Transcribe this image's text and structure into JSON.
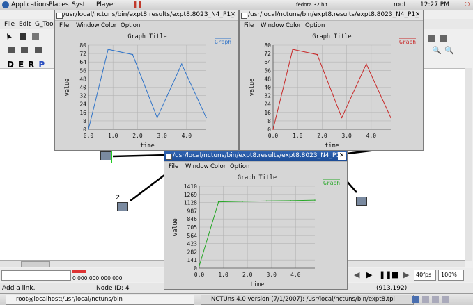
{
  "topbar": {
    "menus": [
      "Applications",
      "Places",
      "Syst"
    ],
    "player": "Player",
    "distro": "fedora 32 bit",
    "user": "root",
    "time": "12:27 PM"
  },
  "app": {
    "menus": [
      "File",
      "Edit",
      "G_Tools"
    ],
    "mode_letters": [
      "D",
      "E",
      "R",
      "P"
    ],
    "node_labels": [
      "2"
    ],
    "playback": {
      "clock": "0 000.000 000 000",
      "fps": "40fps",
      "zoom": "100%"
    },
    "status": {
      "hint": "Add a link.",
      "node_id": "Node ID: 4",
      "coords": "(913,192)"
    }
  },
  "taskbar": {
    "tasks": [
      "root@localhost:/usr/local/nctuns/bin",
      "NCTUns 4.0 version (7/1/2007): /usr/local/nctuns/bin/expt8.tpl"
    ]
  },
  "windows": [
    {
      "title": "/usr/local/nctuns/bin/expt8.results/expt8.8023_N4_P1_",
      "menus": [
        "File",
        "Window",
        "Color",
        "Option"
      ],
      "color": "#2f73c8"
    },
    {
      "title": "/usr/local/nctuns/bin/expt8.results/expt8.8023_N4_P1_",
      "menus": [
        "File",
        "Window",
        "Color",
        "Option"
      ],
      "color": "#c82828"
    },
    {
      "title": "/usr/local/nctuns/bin/expt8.results/expt8.8023_N4_P1_",
      "menus": [
        "File",
        "Window",
        "Color",
        "Option"
      ],
      "color": "#28a828"
    }
  ],
  "chart_data": [
    {
      "type": "line",
      "title": "Graph Title",
      "xlabel": "time",
      "ylabel": "value",
      "legend": "Graph",
      "legend_position": "top-right",
      "x_ticks": [
        "0.0",
        "1.0",
        "2.0",
        "3.0",
        "4.0"
      ],
      "y_ticks": [
        "0",
        "8",
        "16",
        "24",
        "32",
        "40",
        "48",
        "56",
        "64",
        "72",
        "80"
      ],
      "xlim": [
        0,
        4.8
      ],
      "ylim": [
        0,
        80
      ],
      "grid": true,
      "series": [
        {
          "name": "Graph",
          "x": [
            0,
            0.8,
            1.8,
            2.8,
            3.8,
            4.8
          ],
          "y": [
            0,
            76,
            71,
            11,
            62,
            11
          ]
        }
      ]
    },
    {
      "type": "line",
      "title": "Graph Title",
      "xlabel": "time",
      "ylabel": "value",
      "legend": "Graph",
      "legend_position": "top-right",
      "x_ticks": [
        "0.0",
        "1.0",
        "2.0",
        "3.0",
        "4.0"
      ],
      "y_ticks": [
        "0",
        "8",
        "16",
        "24",
        "32",
        "40",
        "48",
        "56",
        "64",
        "72",
        "80"
      ],
      "xlim": [
        0,
        4.8
      ],
      "ylim": [
        0,
        80
      ],
      "grid": true,
      "series": [
        {
          "name": "Graph",
          "x": [
            0,
            0.8,
            1.8,
            2.8,
            3.8,
            4.8
          ],
          "y": [
            0,
            76,
            71,
            11,
            62,
            11
          ]
        }
      ]
    },
    {
      "type": "line",
      "title": "Graph Title",
      "xlabel": "time",
      "ylabel": "value",
      "legend": "Graph",
      "legend_position": "top-right",
      "x_ticks": [
        "0.0",
        "1.0",
        "2.0",
        "3.0",
        "4.0"
      ],
      "y_ticks": [
        "0",
        "141",
        "282",
        "423",
        "564",
        "705",
        "846",
        "987",
        "1128",
        "1269",
        "1410"
      ],
      "xlim": [
        0,
        4.8
      ],
      "ylim": [
        0,
        1410
      ],
      "grid": true,
      "series": [
        {
          "name": "Graph",
          "x": [
            0,
            0.8,
            1.8,
            2.8,
            3.8,
            4.8
          ],
          "y": [
            40,
            1140,
            1148,
            1155,
            1160,
            1170
          ]
        }
      ]
    }
  ]
}
